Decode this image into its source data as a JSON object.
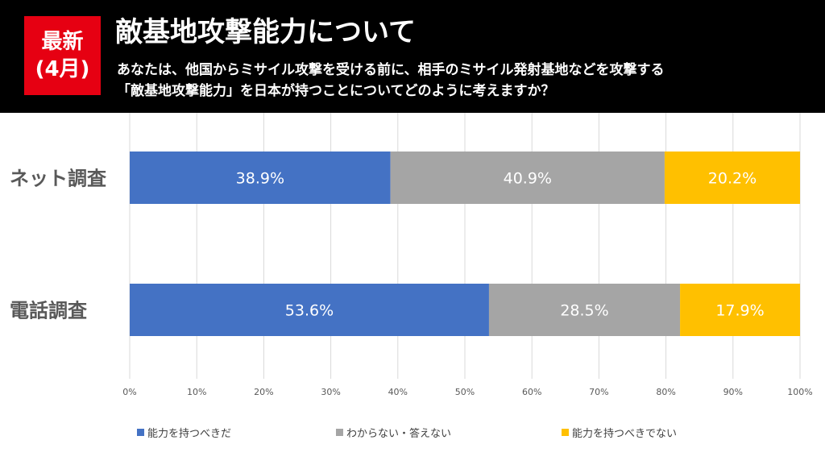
{
  "header": {
    "badge_line1": "最新",
    "badge_line2": "(4月)",
    "title": "敵基地攻撃能力について",
    "question_line1": "あなたは、他国からミサイル攻撃を受ける前に、相手のミサイル発射基地などを攻撃する",
    "question_line2": "「敵基地攻撃能力」を日本が持つことについてどのように考えますか？"
  },
  "colors": {
    "header_bg": "#000000",
    "badge_bg": "#e60012",
    "series": [
      "#4472c4",
      "#a5a5a5",
      "#ffc000"
    ]
  },
  "chart_data": {
    "type": "bar",
    "orientation": "horizontal",
    "stacked": true,
    "categories": [
      "ネット調査",
      "電話調査"
    ],
    "series": [
      {
        "name": "能力を持つべきだ",
        "values": [
          38.9,
          53.6
        ],
        "labels": [
          "38.9%",
          "53.6%"
        ]
      },
      {
        "name": "わからない・答えない",
        "values": [
          40.9,
          28.5
        ],
        "labels": [
          "40.9%",
          "28.5%"
        ]
      },
      {
        "name": "能力を持つべきでない",
        "values": [
          20.2,
          17.9
        ],
        "labels": [
          "20.2%",
          "17.9%"
        ]
      }
    ],
    "xlim": [
      0,
      100
    ],
    "xticks": [
      "0%",
      "10%",
      "20%",
      "30%",
      "40%",
      "50%",
      "60%",
      "70%",
      "80%",
      "90%",
      "100%"
    ],
    "grid": true,
    "legend_position": "bottom"
  }
}
